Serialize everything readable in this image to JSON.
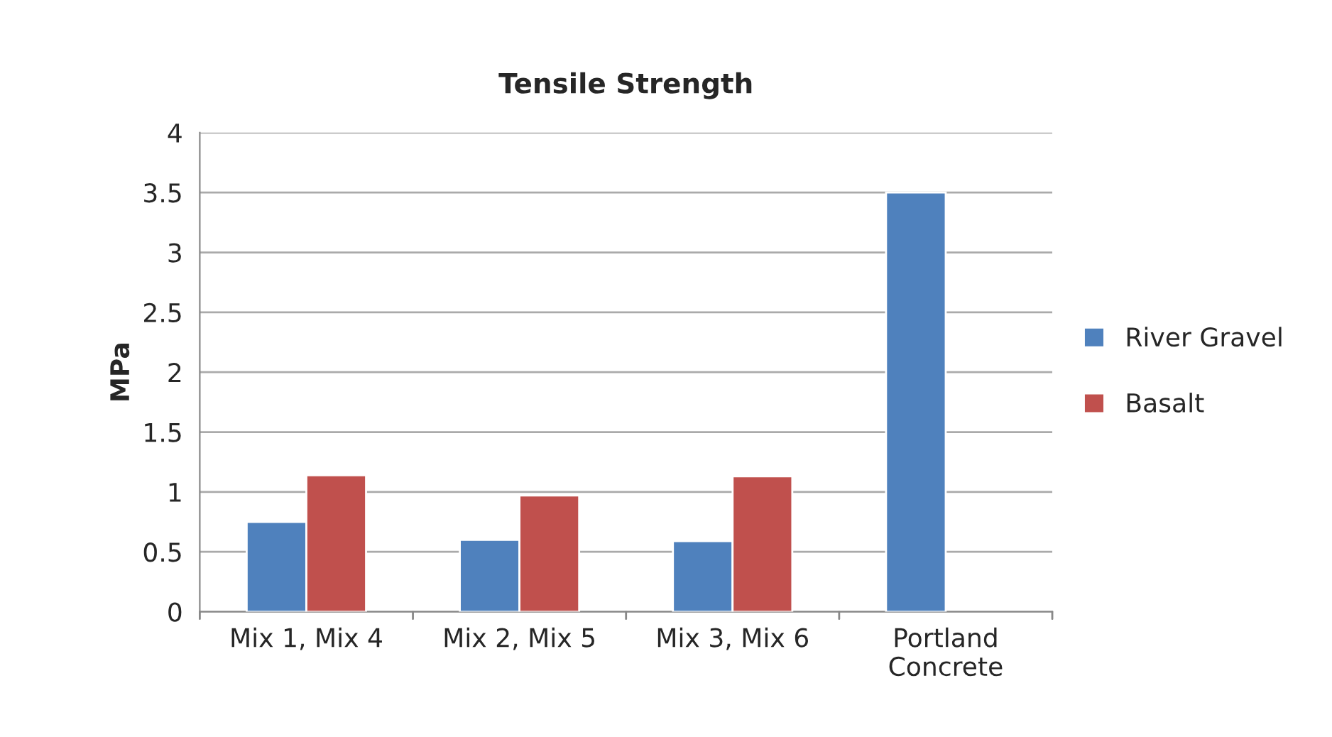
{
  "chart_data": {
    "type": "bar",
    "title": "Tensile Strength",
    "ylabel": "MPa",
    "categories": [
      "Mix 1, Mix 4",
      "Mix 2, Mix 5",
      "Mix 3, Mix 6",
      "Portland\nConcrete"
    ],
    "series": [
      {
        "name": "River Gravel",
        "color": "#4f81bd",
        "values": [
          0.75,
          0.6,
          0.59,
          3.5
        ]
      },
      {
        "name": "Basalt",
        "color": "#c0504d",
        "values": [
          1.14,
          0.97,
          1.13,
          null
        ]
      }
    ],
    "ylim": [
      0,
      4
    ],
    "yticks": [
      0,
      0.5,
      1,
      1.5,
      2,
      2.5,
      3,
      3.5,
      4
    ],
    "grid": "y",
    "legend": "right"
  }
}
